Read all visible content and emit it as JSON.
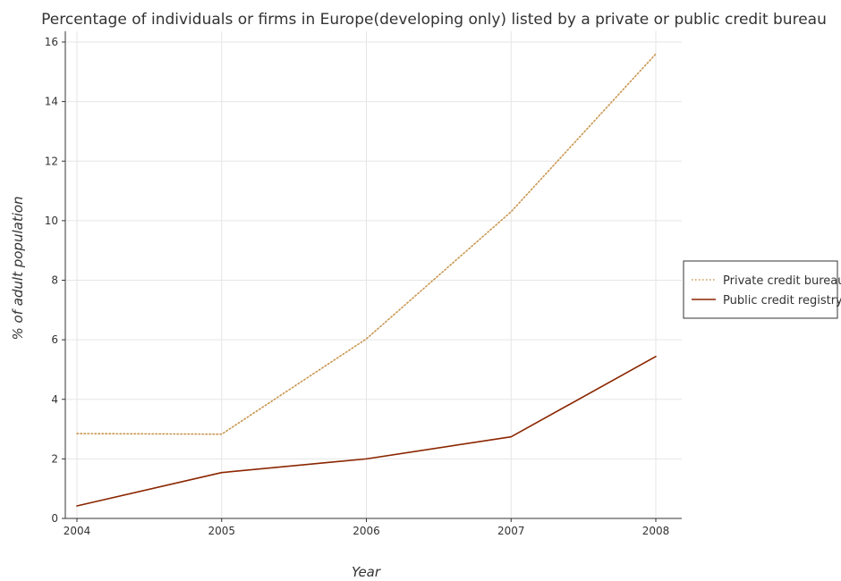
{
  "chart_data": {
    "type": "line",
    "title": "Percentage of individuals or firms in Europe(developing only) listed by a private or public credit bureau",
    "xlabel": "Year",
    "ylabel": "% of adult population",
    "categories": [
      "2004",
      "2005",
      "2006",
      "2007",
      "2008"
    ],
    "ylim": [
      0,
      16
    ],
    "yticks": [
      0,
      2,
      4,
      6,
      8,
      10,
      12,
      14,
      16
    ],
    "grid": true,
    "legend_position": "right",
    "series": [
      {
        "name": "Private credit bureau",
        "values": [
          2.85,
          2.83,
          6.03,
          10.3,
          15.6
        ],
        "color": "#c8964f",
        "style": "dotted"
      },
      {
        "name": "Public credit registry",
        "values": [
          0.42,
          1.54,
          2.0,
          2.74,
          5.44
        ],
        "color": "#8b2500",
        "style": "solid"
      }
    ]
  }
}
